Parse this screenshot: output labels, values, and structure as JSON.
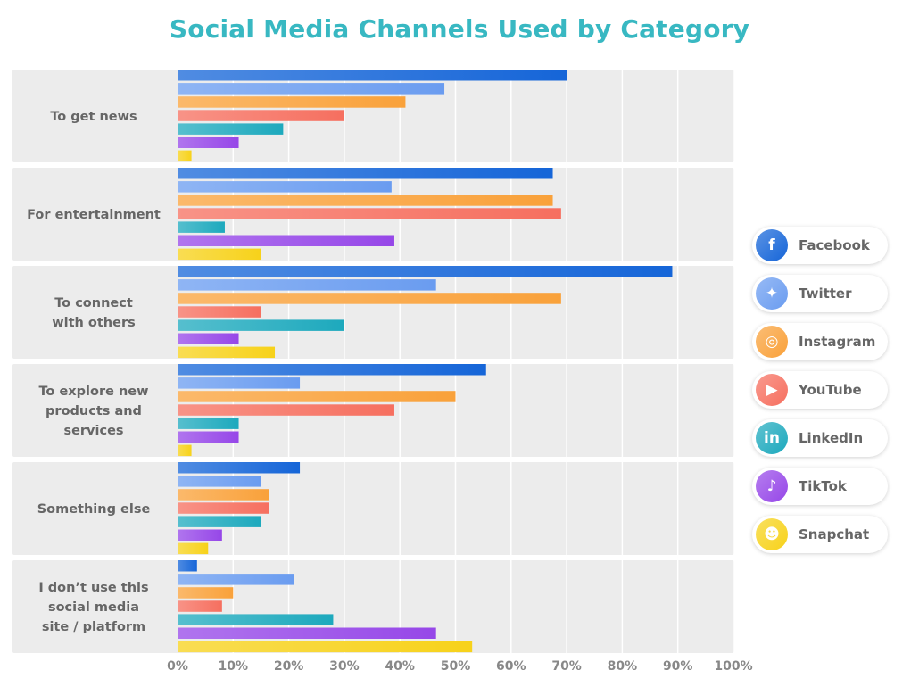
{
  "chart_data": {
    "type": "bar",
    "orientation": "horizontal",
    "title": "Social Media Channels Used by Category",
    "categories": [
      "To get news",
      "For entertainment",
      "To connect\nwith others",
      "To explore new\nproducts and\nservices",
      "Something else",
      "I don’t use this\nsocial media\nsite / platform"
    ],
    "x_ticks": [
      "0%",
      "10%",
      "20%",
      "30%",
      "40%",
      "50%",
      "60%",
      "70%",
      "80%",
      "90%",
      "100%"
    ],
    "xlim": [
      0,
      100
    ],
    "series": [
      {
        "name": "Facebook",
        "color": "#1565d8",
        "values": [
          70,
          67.5,
          89,
          55.5,
          22,
          3.5
        ]
      },
      {
        "name": "Twitter",
        "color": "#6a9cf0",
        "values": [
          48,
          38.5,
          46.5,
          22,
          15,
          21
        ]
      },
      {
        "name": "Instagram",
        "color": "#f9a13a",
        "values": [
          41,
          67.5,
          69,
          50,
          16.5,
          10
        ]
      },
      {
        "name": "YouTube",
        "color": "#f66f5f",
        "values": [
          30,
          69,
          15,
          39,
          16.5,
          8
        ]
      },
      {
        "name": "LinkedIn",
        "color": "#1da9bd",
        "values": [
          19,
          8.5,
          30,
          11,
          15,
          28
        ]
      },
      {
        "name": "TikTok",
        "color": "#9647e8",
        "values": [
          11,
          39,
          11,
          11,
          8,
          46.5
        ]
      },
      {
        "name": "Snapchat",
        "color": "#f7d21a",
        "values": [
          2.5,
          15,
          17.5,
          2.5,
          5.5,
          53
        ]
      }
    ],
    "grid": true,
    "legend_position": "right"
  },
  "legend_icons": {
    "Facebook": {
      "icon": "facebook-icon",
      "glyph": "f",
      "color": "#1565d8"
    },
    "Twitter": {
      "icon": "twitter-icon",
      "glyph": "✦",
      "color": "#6a9cf0"
    },
    "Instagram": {
      "icon": "instagram-icon",
      "glyph": "◎",
      "color": "#f9a13a"
    },
    "YouTube": {
      "icon": "youtube-icon",
      "glyph": "▶",
      "color": "#f66f5f"
    },
    "LinkedIn": {
      "icon": "linkedin-icon",
      "glyph": "in",
      "color": "#1da9bd"
    },
    "TikTok": {
      "icon": "tiktok-icon",
      "glyph": "♪",
      "color": "#9647e8"
    },
    "Snapchat": {
      "icon": "snapchat-icon",
      "glyph": "☻",
      "color": "#f7d21a"
    }
  },
  "colors": {
    "title": "#38b8c2",
    "panel": "#ececec",
    "grid": "#ffffff",
    "text": "#666666"
  }
}
